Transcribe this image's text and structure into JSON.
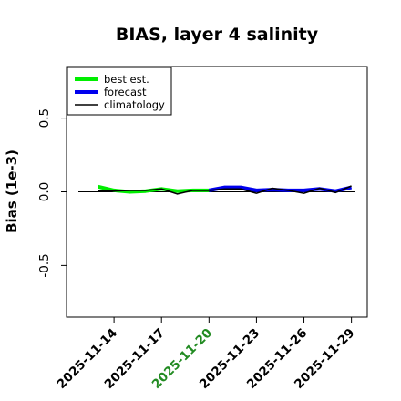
{
  "chart_data": {
    "type": "line",
    "title": "BIAS, layer 4 salinity",
    "ylabel": "Bias (1e-3)",
    "xlabel": "",
    "ylim": [
      -0.85,
      0.85
    ],
    "xlim": [
      "2025-11-11",
      "2025-11-30"
    ],
    "yticks": [
      "-0.5",
      "0.0",
      "0.5"
    ],
    "ytick_values": [
      -0.5,
      0.0,
      0.5
    ],
    "xticks": [
      {
        "date": "2025-11-14",
        "label": "2025-11-14",
        "color": "#000000"
      },
      {
        "date": "2025-11-17",
        "label": "2025-11-17",
        "color": "#000000"
      },
      {
        "date": "2025-11-20",
        "label": "2025-11-20",
        "color": "#228B22"
      },
      {
        "date": "2025-11-23",
        "label": "2025-11-23",
        "color": "#000000"
      },
      {
        "date": "2025-11-26",
        "label": "2025-11-26",
        "color": "#000000"
      },
      {
        "date": "2025-11-29",
        "label": "2025-11-29",
        "color": "#000000"
      }
    ],
    "zero_line": 0.0,
    "legend_position": "top-left",
    "series": [
      {
        "name": "best est.",
        "color": "#00ee00",
        "x": [
          "2025-11-13",
          "2025-11-14",
          "2025-11-15",
          "2025-11-16",
          "2025-11-17",
          "2025-11-18",
          "2025-11-19",
          "2025-11-20"
        ],
        "values": [
          0.035,
          0.01,
          0.0,
          0.005,
          0.02,
          0.005,
          0.01,
          0.01
        ]
      },
      {
        "name": "forecast",
        "color": "#0000ee",
        "x": [
          "2025-11-20",
          "2025-11-21",
          "2025-11-22",
          "2025-11-23",
          "2025-11-24",
          "2025-11-25",
          "2025-11-26",
          "2025-11-27",
          "2025-11-28",
          "2025-11-29"
        ],
        "values": [
          0.01,
          0.03,
          0.03,
          0.01,
          0.015,
          0.01,
          0.01,
          0.02,
          0.005,
          0.03
        ]
      },
      {
        "name": "climatology",
        "color": "#000000",
        "x": [
          "2025-11-13",
          "2025-11-14",
          "2025-11-15",
          "2025-11-16",
          "2025-11-17",
          "2025-11-18",
          "2025-11-19",
          "2025-11-20",
          "2025-11-21",
          "2025-11-22",
          "2025-11-23",
          "2025-11-24",
          "2025-11-25",
          "2025-11-26",
          "2025-11-27",
          "2025-11-28",
          "2025-11-29"
        ],
        "values": [
          0.005,
          0.005,
          0.01,
          0.01,
          0.02,
          -0.015,
          0.01,
          0.01,
          0.02,
          0.02,
          -0.01,
          0.025,
          0.01,
          -0.01,
          0.025,
          -0.005,
          0.04
        ]
      }
    ]
  }
}
